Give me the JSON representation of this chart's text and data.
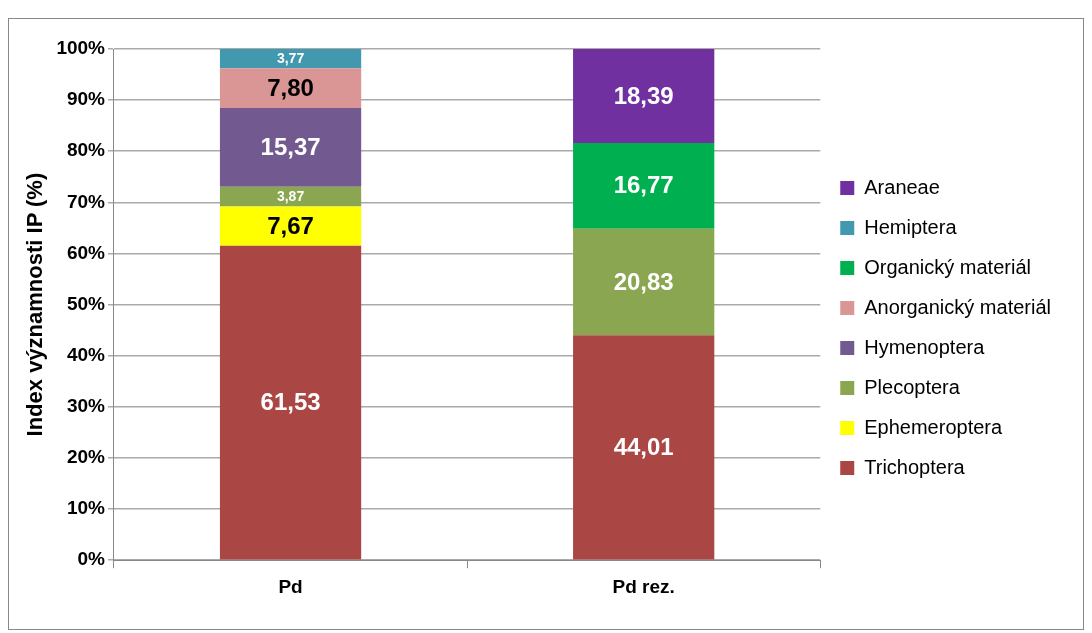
{
  "chart_data": {
    "type": "bar",
    "stacked": true,
    "ylabel": "Index významnosti IP (%)",
    "categories": [
      "Pd",
      "Pd rez."
    ],
    "series": [
      {
        "name": "Trichoptera",
        "color": "#aa4643",
        "values": [
          61.53,
          44.01
        ],
        "value_labels": [
          "61,53",
          "44,01"
        ]
      },
      {
        "name": "Ephemeroptera",
        "color": "#ffff00",
        "values": [
          7.67,
          null
        ],
        "value_labels": [
          "7,67",
          null
        ]
      },
      {
        "name": "Plecoptera",
        "color": "#8ba650",
        "values": [
          3.87,
          20.83
        ],
        "value_labels": [
          "3,87",
          "20,83"
        ]
      },
      {
        "name": "Hymenoptera",
        "color": "#725990",
        "values": [
          15.37,
          null
        ],
        "value_labels": [
          "15,37",
          null
        ]
      },
      {
        "name": "Anorganický materiál",
        "color": "#d99694",
        "values": [
          7.8,
          null
        ],
        "value_labels": [
          "7,80",
          null
        ]
      },
      {
        "name": "Organický materiál",
        "color": "#00b050",
        "values": [
          null,
          16.77
        ],
        "value_labels": [
          null,
          "16,77"
        ]
      },
      {
        "name": "Hemiptera",
        "color": "#4198af",
        "values": [
          3.77,
          null
        ],
        "value_labels": [
          "3,77",
          null
        ]
      },
      {
        "name": "Araneae",
        "color": "#7030a0",
        "values": [
          null,
          18.39
        ],
        "value_labels": [
          null,
          "18,39"
        ]
      }
    ],
    "ylim": [
      0,
      100
    ],
    "yticks": [
      {
        "value": 0,
        "label": "0%"
      },
      {
        "value": 10,
        "label": "10%"
      },
      {
        "value": 20,
        "label": "20%"
      },
      {
        "value": 30,
        "label": "30%"
      },
      {
        "value": 40,
        "label": "40%"
      },
      {
        "value": 50,
        "label": "50%"
      },
      {
        "value": 60,
        "label": "60%"
      },
      {
        "value": 70,
        "label": "70%"
      },
      {
        "value": 80,
        "label": "80%"
      },
      {
        "value": 90,
        "label": "90%"
      },
      {
        "value": 100,
        "label": "100%"
      }
    ],
    "grid": "y",
    "legend": "right"
  }
}
